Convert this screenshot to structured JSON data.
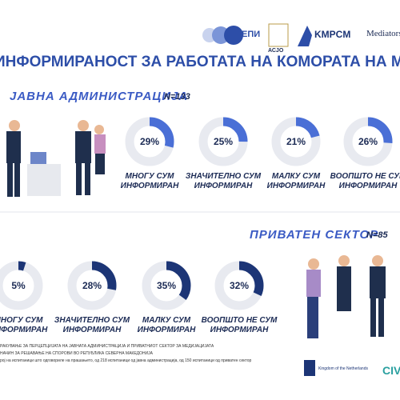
{
  "header": {
    "logos": [
      "ЕПИ",
      "АСЈО",
      "KMPCM",
      "Mediators"
    ],
    "title": "ИНФОРМИРАНОСТ ЗА РАБОТАТА НА КОМОРАТА НА МЕДИЈАТОРИ"
  },
  "chart_data": [
    {
      "type": "donut",
      "title": "ЈАВНА АДМИНИСТРАЦИЈА",
      "subtitle": "N=133",
      "color": "#4a6fd6",
      "track_color": "#e8eaf0",
      "categories": [
        "МНОГУ СУМ\nИНФОРМИРАН",
        "ЗНАЧИТЕЛНО СУМ\nИНФОРМИРАН",
        "МАЛКУ СУМ\nИНФОРМИРАН",
        "ВООПШТО НЕ СУМ\nИНФОРМИРАН"
      ],
      "values": [
        29,
        25,
        21,
        26
      ],
      "value_labels": [
        "29%",
        "25%",
        "21%",
        "26%"
      ]
    },
    {
      "type": "donut",
      "title": "ПРИВАТЕН СЕКТОР",
      "subtitle": "N=85",
      "color": "#1c3576",
      "track_color": "#e8eaf0",
      "categories": [
        "МНОГУ СУМ\nИНФОРМИРАН",
        "ЗНАЧИТЕЛНО СУМ\nИНФОРМИРАН",
        "МАЛКУ СУМ\nИНФОРМИРАН",
        "ВООПШТО НЕ СУМ\nИНФОРМИРАН"
      ],
      "values": [
        5,
        28,
        35,
        32
      ],
      "value_labels": [
        "5%",
        "28%",
        "35%",
        "32%"
      ]
    }
  ],
  "footer": {
    "notes": [
      "РАКУВАЊЕ ЗА ПЕРЦЕПЦИЈАТА НА ЈАВНАТА АДМИНИСТРАЦИЈА И ПРИВАТНИОТ СЕКТОР ЗА МЕДИЈАЦИЈАТА",
      "НАЧИН ЗА РЕШАВАЊЕ НА СПОРОВИ ВО РЕПУБЛИКА СЕВЕРНА МАКЕДОНИЈА",
      "рој на испитаници што одговориле на прашањето, од 218 испитаници од јавна администрација, од 150 испитаници од приватен сектор"
    ],
    "partners": [
      "Kingdom of the Netherlands",
      "CIV"
    ]
  }
}
